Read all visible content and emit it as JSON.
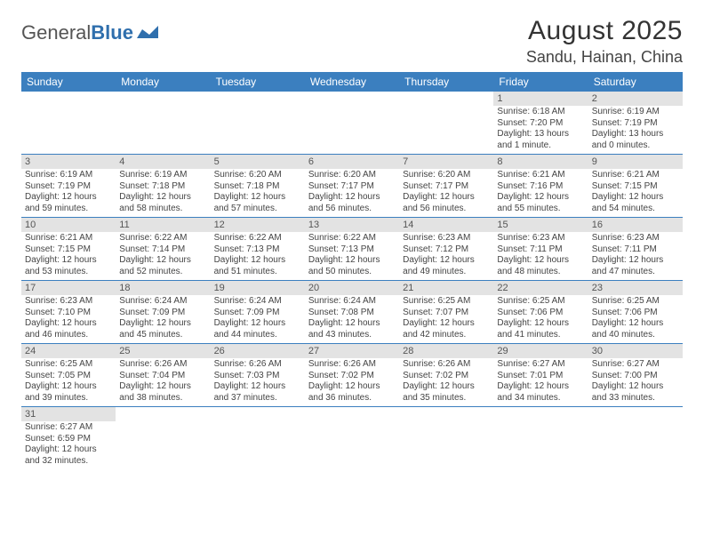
{
  "logo": {
    "text1": "General",
    "text2": "Blue"
  },
  "title": "August 2025",
  "location": "Sandu, Hainan, China",
  "colors": {
    "header_bg": "#3b7fbf",
    "header_text": "#ffffff",
    "daynum_bg": "#e3e3e3",
    "row_border": "#3b7fbf",
    "body_text": "#444444",
    "page_bg": "#ffffff"
  },
  "font": {
    "family": "Arial",
    "title_size": 30,
    "location_size": 18,
    "header_size": 12,
    "body_size": 10
  },
  "day_names": [
    "Sunday",
    "Monday",
    "Tuesday",
    "Wednesday",
    "Thursday",
    "Friday",
    "Saturday"
  ],
  "weeks": [
    [
      {
        "empty": true
      },
      {
        "empty": true
      },
      {
        "empty": true
      },
      {
        "empty": true
      },
      {
        "empty": true
      },
      {
        "num": "1",
        "sunrise": "Sunrise: 6:18 AM",
        "sunset": "Sunset: 7:20 PM",
        "daylight": "Daylight: 13 hours and 1 minute."
      },
      {
        "num": "2",
        "sunrise": "Sunrise: 6:19 AM",
        "sunset": "Sunset: 7:19 PM",
        "daylight": "Daylight: 13 hours and 0 minutes."
      }
    ],
    [
      {
        "num": "3",
        "sunrise": "Sunrise: 6:19 AM",
        "sunset": "Sunset: 7:19 PM",
        "daylight": "Daylight: 12 hours and 59 minutes."
      },
      {
        "num": "4",
        "sunrise": "Sunrise: 6:19 AM",
        "sunset": "Sunset: 7:18 PM",
        "daylight": "Daylight: 12 hours and 58 minutes."
      },
      {
        "num": "5",
        "sunrise": "Sunrise: 6:20 AM",
        "sunset": "Sunset: 7:18 PM",
        "daylight": "Daylight: 12 hours and 57 minutes."
      },
      {
        "num": "6",
        "sunrise": "Sunrise: 6:20 AM",
        "sunset": "Sunset: 7:17 PM",
        "daylight": "Daylight: 12 hours and 56 minutes."
      },
      {
        "num": "7",
        "sunrise": "Sunrise: 6:20 AM",
        "sunset": "Sunset: 7:17 PM",
        "daylight": "Daylight: 12 hours and 56 minutes."
      },
      {
        "num": "8",
        "sunrise": "Sunrise: 6:21 AM",
        "sunset": "Sunset: 7:16 PM",
        "daylight": "Daylight: 12 hours and 55 minutes."
      },
      {
        "num": "9",
        "sunrise": "Sunrise: 6:21 AM",
        "sunset": "Sunset: 7:15 PM",
        "daylight": "Daylight: 12 hours and 54 minutes."
      }
    ],
    [
      {
        "num": "10",
        "sunrise": "Sunrise: 6:21 AM",
        "sunset": "Sunset: 7:15 PM",
        "daylight": "Daylight: 12 hours and 53 minutes."
      },
      {
        "num": "11",
        "sunrise": "Sunrise: 6:22 AM",
        "sunset": "Sunset: 7:14 PM",
        "daylight": "Daylight: 12 hours and 52 minutes."
      },
      {
        "num": "12",
        "sunrise": "Sunrise: 6:22 AM",
        "sunset": "Sunset: 7:13 PM",
        "daylight": "Daylight: 12 hours and 51 minutes."
      },
      {
        "num": "13",
        "sunrise": "Sunrise: 6:22 AM",
        "sunset": "Sunset: 7:13 PM",
        "daylight": "Daylight: 12 hours and 50 minutes."
      },
      {
        "num": "14",
        "sunrise": "Sunrise: 6:23 AM",
        "sunset": "Sunset: 7:12 PM",
        "daylight": "Daylight: 12 hours and 49 minutes."
      },
      {
        "num": "15",
        "sunrise": "Sunrise: 6:23 AM",
        "sunset": "Sunset: 7:11 PM",
        "daylight": "Daylight: 12 hours and 48 minutes."
      },
      {
        "num": "16",
        "sunrise": "Sunrise: 6:23 AM",
        "sunset": "Sunset: 7:11 PM",
        "daylight": "Daylight: 12 hours and 47 minutes."
      }
    ],
    [
      {
        "num": "17",
        "sunrise": "Sunrise: 6:23 AM",
        "sunset": "Sunset: 7:10 PM",
        "daylight": "Daylight: 12 hours and 46 minutes."
      },
      {
        "num": "18",
        "sunrise": "Sunrise: 6:24 AM",
        "sunset": "Sunset: 7:09 PM",
        "daylight": "Daylight: 12 hours and 45 minutes."
      },
      {
        "num": "19",
        "sunrise": "Sunrise: 6:24 AM",
        "sunset": "Sunset: 7:09 PM",
        "daylight": "Daylight: 12 hours and 44 minutes."
      },
      {
        "num": "20",
        "sunrise": "Sunrise: 6:24 AM",
        "sunset": "Sunset: 7:08 PM",
        "daylight": "Daylight: 12 hours and 43 minutes."
      },
      {
        "num": "21",
        "sunrise": "Sunrise: 6:25 AM",
        "sunset": "Sunset: 7:07 PM",
        "daylight": "Daylight: 12 hours and 42 minutes."
      },
      {
        "num": "22",
        "sunrise": "Sunrise: 6:25 AM",
        "sunset": "Sunset: 7:06 PM",
        "daylight": "Daylight: 12 hours and 41 minutes."
      },
      {
        "num": "23",
        "sunrise": "Sunrise: 6:25 AM",
        "sunset": "Sunset: 7:06 PM",
        "daylight": "Daylight: 12 hours and 40 minutes."
      }
    ],
    [
      {
        "num": "24",
        "sunrise": "Sunrise: 6:25 AM",
        "sunset": "Sunset: 7:05 PM",
        "daylight": "Daylight: 12 hours and 39 minutes."
      },
      {
        "num": "25",
        "sunrise": "Sunrise: 6:26 AM",
        "sunset": "Sunset: 7:04 PM",
        "daylight": "Daylight: 12 hours and 38 minutes."
      },
      {
        "num": "26",
        "sunrise": "Sunrise: 6:26 AM",
        "sunset": "Sunset: 7:03 PM",
        "daylight": "Daylight: 12 hours and 37 minutes."
      },
      {
        "num": "27",
        "sunrise": "Sunrise: 6:26 AM",
        "sunset": "Sunset: 7:02 PM",
        "daylight": "Daylight: 12 hours and 36 minutes."
      },
      {
        "num": "28",
        "sunrise": "Sunrise: 6:26 AM",
        "sunset": "Sunset: 7:02 PM",
        "daylight": "Daylight: 12 hours and 35 minutes."
      },
      {
        "num": "29",
        "sunrise": "Sunrise: 6:27 AM",
        "sunset": "Sunset: 7:01 PM",
        "daylight": "Daylight: 12 hours and 34 minutes."
      },
      {
        "num": "30",
        "sunrise": "Sunrise: 6:27 AM",
        "sunset": "Sunset: 7:00 PM",
        "daylight": "Daylight: 12 hours and 33 minutes."
      }
    ],
    [
      {
        "num": "31",
        "sunrise": "Sunrise: 6:27 AM",
        "sunset": "Sunset: 6:59 PM",
        "daylight": "Daylight: 12 hours and 32 minutes."
      },
      {
        "empty": true
      },
      {
        "empty": true
      },
      {
        "empty": true
      },
      {
        "empty": true
      },
      {
        "empty": true
      },
      {
        "empty": true
      }
    ]
  ]
}
